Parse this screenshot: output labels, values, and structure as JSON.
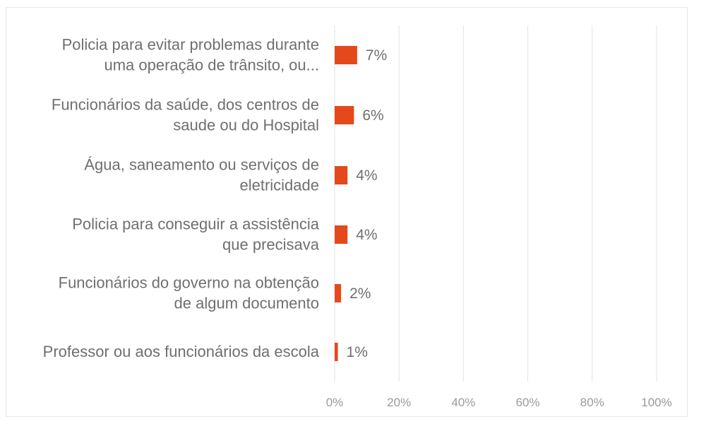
{
  "colors": {
    "bar": "#e4491c",
    "grid": "#e3e3e3",
    "text": "#6f6f6f"
  },
  "chart_data": {
    "type": "bar",
    "orientation": "horizontal",
    "title": "",
    "xlabel": "",
    "ylabel": "",
    "xlim": [
      0,
      100
    ],
    "x_ticks": [
      "0%",
      "20%",
      "40%",
      "60%",
      "80%",
      "100%"
    ],
    "grid": true,
    "categories": [
      [
        "Policia para evitar problemas durante",
        "uma  operação de trânsito, ou..."
      ],
      [
        "Funcionários da saúde, dos centros de",
        "saude ou do Hospital"
      ],
      [
        "Água, saneamento ou serviços de",
        "eletricidade"
      ],
      [
        "Policia para conseguir a assistência",
        "que precisava"
      ],
      [
        "Funcionários do governo na obtenção",
        "de algum documento"
      ],
      [
        "Professor ou aos funcionários da escola"
      ]
    ],
    "values": [
      7,
      6,
      4,
      4,
      2,
      1
    ],
    "value_labels": [
      "7%",
      "6%",
      "4%",
      "4%",
      "2%",
      "1%"
    ]
  }
}
